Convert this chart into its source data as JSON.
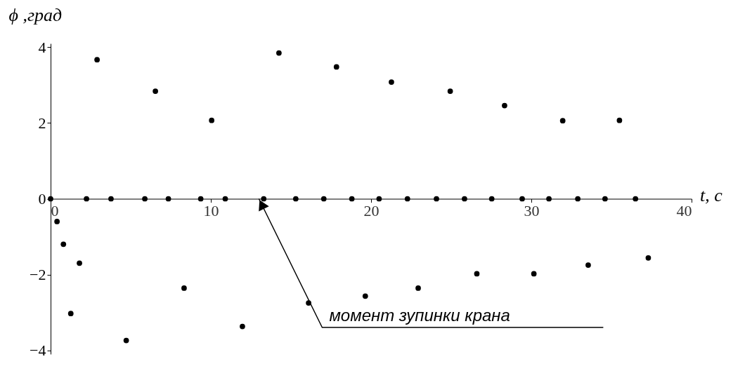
{
  "chart_data": {
    "type": "scatter",
    "xlabel": "t, c",
    "ylabel": "ϕ ,град",
    "xlim": [
      0,
      40
    ],
    "ylim": [
      -4.1,
      4.1
    ],
    "xticks": [
      0,
      10,
      20,
      30,
      40
    ],
    "yticks": [
      -4,
      -2,
      0,
      2,
      4
    ],
    "grid": false,
    "marker": "circle",
    "series": [
      {
        "color": "#000000",
        "x": [
          0,
          0.4,
          0.8,
          1.26,
          1.8,
          2.24,
          2.9,
          3.77,
          4.72,
          5.88,
          6.54,
          7.35,
          8.33,
          9.37,
          10.05,
          10.9,
          11.97,
          13.3,
          14.25,
          15.3,
          16.1,
          17.05,
          17.84,
          18.8,
          19.64,
          20.5,
          21.27,
          22.27,
          22.94,
          24.08,
          24.94,
          25.83,
          26.6,
          27.53,
          28.33,
          29.43,
          30.16,
          31.1,
          31.96,
          32.9,
          33.55,
          34.6,
          35.5,
          36.5,
          37.3
        ],
        "values": [
          0,
          -0.6,
          -1.2,
          -3.03,
          -1.7,
          0,
          3.67,
          0,
          -3.74,
          0,
          2.84,
          0,
          -2.36,
          0,
          2.07,
          0,
          -3.37,
          0,
          3.85,
          0,
          -2.75,
          0,
          3.48,
          0,
          -2.57,
          0,
          3.08,
          0,
          -2.36,
          0,
          2.84,
          0,
          -1.98,
          0,
          2.46,
          0,
          -1.98,
          0,
          2.06,
          0,
          -1.75,
          0,
          2.07,
          0,
          -1.56
        ]
      }
    ],
    "annotations": [
      {
        "text": "момент зупинки крана",
        "x": 13.0,
        "y": 0
      }
    ]
  }
}
